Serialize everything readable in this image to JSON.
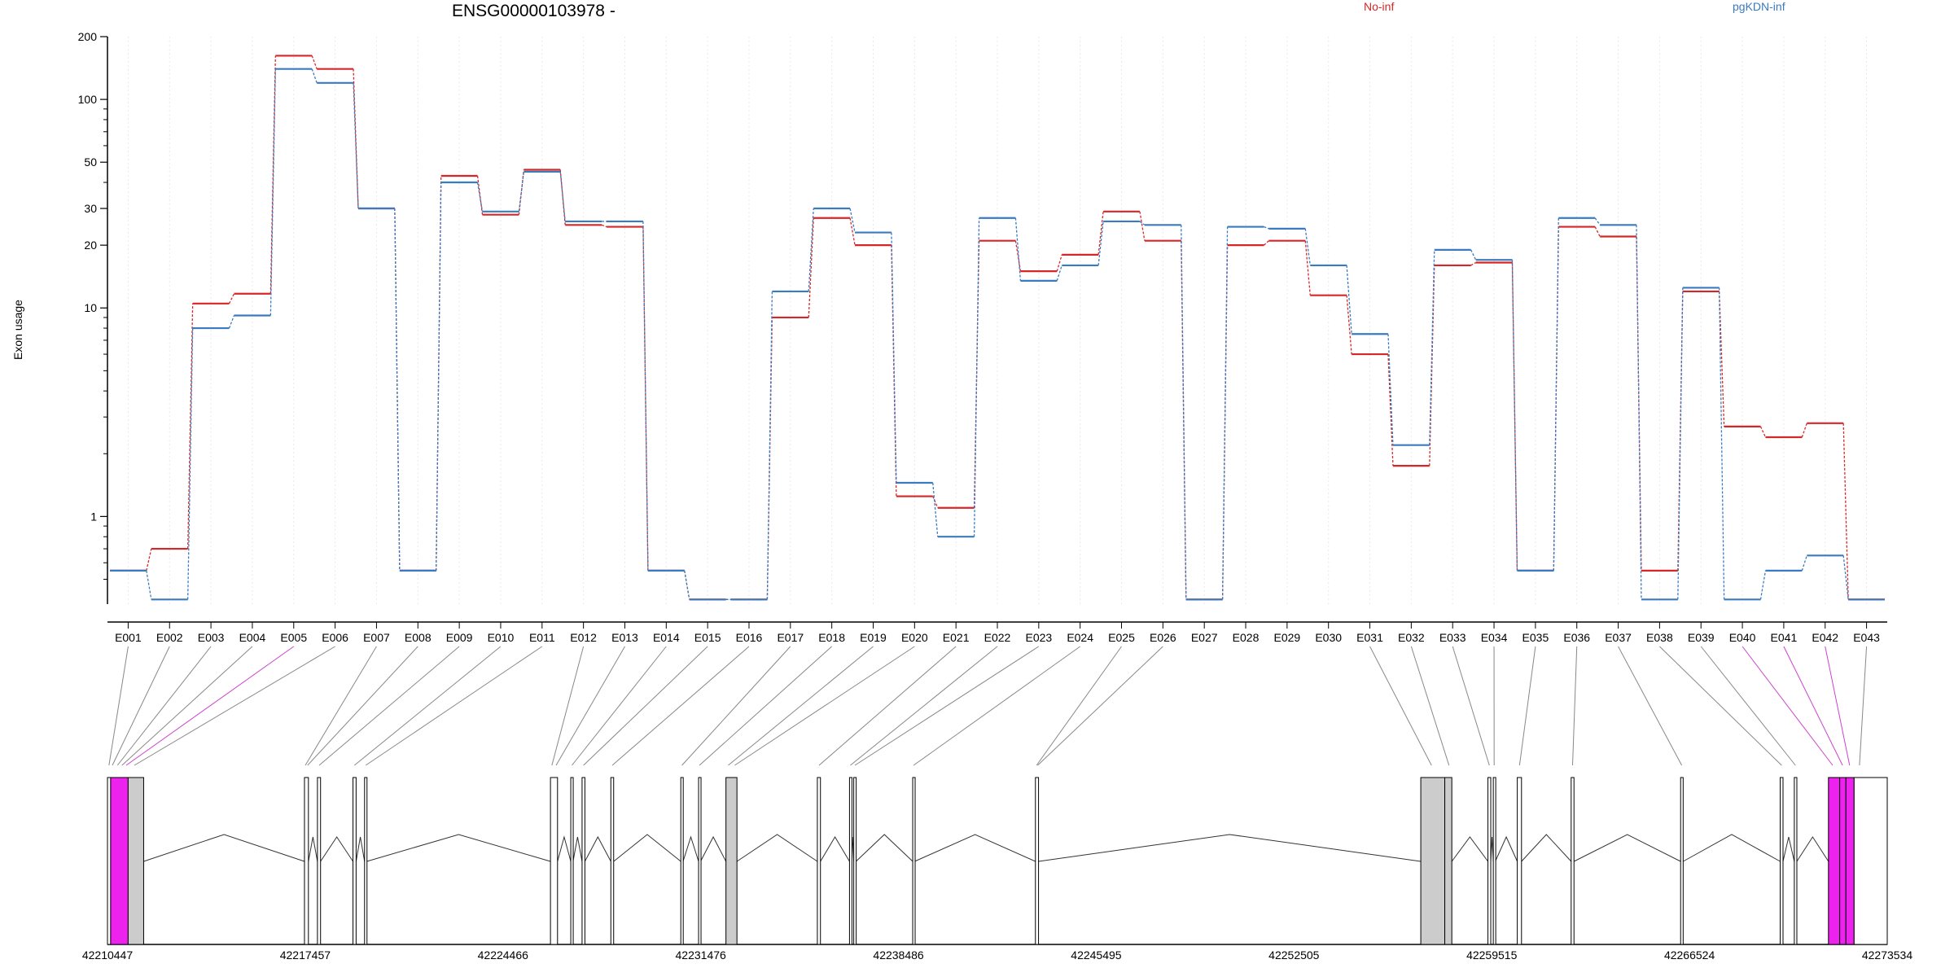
{
  "chart_data": {
    "type": "line",
    "title": "ENSG00000103978 -",
    "ylabel": "Exon usage",
    "yscale": "log",
    "ylim": [
      0.38,
      200
    ],
    "yticks": [
      1,
      10,
      20,
      30,
      50,
      100,
      200
    ],
    "ytick_labels": [
      "1",
      "10",
      "20",
      "30",
      "50",
      "100",
      "200"
    ],
    "grid": "vertical-light",
    "legend": [
      "No-inf",
      "pgKDN-inf"
    ],
    "legend_placement": "top",
    "colors": {
      "No-inf": "#d62728",
      "pgKDN-inf": "#3a7bbf"
    },
    "categories": [
      "E001",
      "E002",
      "E003",
      "E004",
      "E005",
      "E006",
      "E007",
      "E008",
      "E009",
      "E010",
      "E011",
      "E012",
      "E013",
      "E014",
      "E015",
      "E016",
      "E017",
      "E018",
      "E019",
      "E020",
      "E021",
      "E022",
      "E023",
      "E024",
      "E025",
      "E026",
      "E027",
      "E028",
      "E029",
      "E030",
      "E031",
      "E032",
      "E033",
      "E034",
      "E035",
      "E036",
      "E037",
      "E038",
      "E039",
      "E040",
      "E041",
      "E042",
      "E043"
    ],
    "series": [
      {
        "name": "No-inf",
        "values": [
          0.55,
          0.7,
          10.5,
          11.7,
          162,
          140,
          30,
          0.55,
          43,
          28,
          46,
          25,
          24.5,
          0.55,
          0.4,
          0.4,
          9,
          27,
          20,
          1.25,
          1.1,
          21,
          15,
          18,
          29,
          21,
          0.4,
          20,
          21,
          11.5,
          6,
          1.75,
          16,
          16.5,
          0.55,
          24.5,
          22,
          0.55,
          12,
          2.7,
          2.4,
          2.8,
          0.4
        ]
      },
      {
        "name": "pgKDN-inf",
        "values": [
          0.55,
          0.4,
          8,
          9.2,
          140,
          120,
          30,
          0.55,
          40,
          29,
          45,
          26,
          26,
          0.55,
          0.4,
          0.4,
          12,
          30,
          23,
          1.45,
          0.8,
          27,
          13.5,
          16,
          26,
          25,
          0.4,
          24.5,
          24,
          16,
          7.5,
          2.2,
          19,
          17,
          0.55,
          27,
          25,
          0.4,
          12.5,
          0.4,
          0.55,
          0.65,
          0.4
        ]
      }
    ],
    "gene_model": {
      "coordinate_labels": [
        "42210447",
        "42217457",
        "42224466",
        "42231476",
        "42238486",
        "42245495",
        "42252505",
        "42259515",
        "42266524",
        "42273534"
      ],
      "genomic_range": [
        42210447,
        42273534
      ],
      "highlight_color": "#ee22ee",
      "exons": [
        {
          "start": 42210447,
          "end": 42210560,
          "fill": "#ffffff"
        },
        {
          "start": 42210560,
          "end": 42211180,
          "fill": "#ee22ee"
        },
        {
          "start": 42211180,
          "end": 42211730,
          "fill": "#cccccc"
        },
        {
          "start": 42217430,
          "end": 42217570,
          "fill": "#ffffff"
        },
        {
          "start": 42217890,
          "end": 42218000,
          "fill": "#ffffff"
        },
        {
          "start": 42219150,
          "end": 42219260,
          "fill": "#ffffff"
        },
        {
          "start": 42219560,
          "end": 42219640,
          "fill": "#ffffff"
        },
        {
          "start": 42226150,
          "end": 42226400,
          "fill": "#ffffff"
        },
        {
          "start": 42226870,
          "end": 42226950,
          "fill": "#ffffff"
        },
        {
          "start": 42227270,
          "end": 42227370,
          "fill": "#ffffff"
        },
        {
          "start": 42228290,
          "end": 42228390,
          "fill": "#ffffff"
        },
        {
          "start": 42230770,
          "end": 42230850,
          "fill": "#ffffff"
        },
        {
          "start": 42231400,
          "end": 42231470,
          "fill": "#ffffff"
        },
        {
          "start": 42232370,
          "end": 42232760,
          "fill": "#cccccc"
        },
        {
          "start": 42235610,
          "end": 42235720,
          "fill": "#ffffff"
        },
        {
          "start": 42236750,
          "end": 42236810,
          "fill": "#ffffff"
        },
        {
          "start": 42236900,
          "end": 42236980,
          "fill": "#ffffff"
        },
        {
          "start": 42238990,
          "end": 42239060,
          "fill": "#ffffff"
        },
        {
          "start": 42243340,
          "end": 42243450,
          "fill": "#ffffff"
        },
        {
          "start": 42257000,
          "end": 42257850,
          "fill": "#cccccc"
        },
        {
          "start": 42257850,
          "end": 42258100,
          "fill": "#cccccc"
        },
        {
          "start": 42259380,
          "end": 42259480,
          "fill": "#ffffff"
        },
        {
          "start": 42259570,
          "end": 42259640,
          "fill": "#ffffff"
        },
        {
          "start": 42260420,
          "end": 42260570,
          "fill": "#ffffff"
        },
        {
          "start": 42262330,
          "end": 42262430,
          "fill": "#ffffff"
        },
        {
          "start": 42266210,
          "end": 42266300,
          "fill": "#ffffff"
        },
        {
          "start": 42269740,
          "end": 42269840,
          "fill": "#ffffff"
        },
        {
          "start": 42270240,
          "end": 42270330,
          "fill": "#ffffff"
        },
        {
          "start": 42271450,
          "end": 42271850,
          "fill": "#ee22ee"
        },
        {
          "start": 42271850,
          "end": 42272070,
          "fill": "#ee22ee"
        },
        {
          "start": 42272070,
          "end": 42272360,
          "fill": "#ee22ee"
        },
        {
          "start": 42272360,
          "end": 42273534,
          "fill": "#ffffff"
        }
      ],
      "exon_label_map": [
        {
          "exon": "E001",
          "genomic": 42210500,
          "highlight": false
        },
        {
          "exon": "E002",
          "genomic": 42210620,
          "highlight": false
        },
        {
          "exon": "E003",
          "genomic": 42210800,
          "highlight": false
        },
        {
          "exon": "E004",
          "genomic": 42210960,
          "highlight": false
        },
        {
          "exon": "E005",
          "genomic": 42211110,
          "highlight": true
        },
        {
          "exon": "E006",
          "genomic": 42211400,
          "highlight": false
        },
        {
          "exon": "E007",
          "genomic": 42217460,
          "highlight": false
        },
        {
          "exon": "E008",
          "genomic": 42217540,
          "highlight": false
        },
        {
          "exon": "E009",
          "genomic": 42217950,
          "highlight": false
        },
        {
          "exon": "E010",
          "genomic": 42219200,
          "highlight": false
        },
        {
          "exon": "E011",
          "genomic": 42219600,
          "highlight": false
        },
        {
          "exon": "E012",
          "genomic": 42226200,
          "highlight": false
        },
        {
          "exon": "E013",
          "genomic": 42226350,
          "highlight": false
        },
        {
          "exon": "E014",
          "genomic": 42226910,
          "highlight": false
        },
        {
          "exon": "E015",
          "genomic": 42227320,
          "highlight": false
        },
        {
          "exon": "E016",
          "genomic": 42228340,
          "highlight": false
        },
        {
          "exon": "E017",
          "genomic": 42230810,
          "highlight": false
        },
        {
          "exon": "E018",
          "genomic": 42231430,
          "highlight": false
        },
        {
          "exon": "E019",
          "genomic": 42232450,
          "highlight": false
        },
        {
          "exon": "E020",
          "genomic": 42232680,
          "highlight": false
        },
        {
          "exon": "E021",
          "genomic": 42235670,
          "highlight": false
        },
        {
          "exon": "E022",
          "genomic": 42236780,
          "highlight": false
        },
        {
          "exon": "E023",
          "genomic": 42236940,
          "highlight": false
        },
        {
          "exon": "E024",
          "genomic": 42239020,
          "highlight": false
        },
        {
          "exon": "E025",
          "genomic": 42243380,
          "highlight": false
        },
        {
          "exon": "E026",
          "genomic": 42243420,
          "highlight": false
        },
        {
          "exon": "E031",
          "genomic": 42257380,
          "highlight": false
        },
        {
          "exon": "E032",
          "genomic": 42258000,
          "highlight": false
        },
        {
          "exon": "E033",
          "genomic": 42259430,
          "highlight": false
        },
        {
          "exon": "E034",
          "genomic": 42259600,
          "highlight": false
        },
        {
          "exon": "E035",
          "genomic": 42260500,
          "highlight": false
        },
        {
          "exon": "E036",
          "genomic": 42262380,
          "highlight": false
        },
        {
          "exon": "E037",
          "genomic": 42266250,
          "highlight": false
        },
        {
          "exon": "E038",
          "genomic": 42269790,
          "highlight": false
        },
        {
          "exon": "E039",
          "genomic": 42270280,
          "highlight": false
        },
        {
          "exon": "E040",
          "genomic": 42271600,
          "highlight": true
        },
        {
          "exon": "E041",
          "genomic": 42271950,
          "highlight": true
        },
        {
          "exon": "E042",
          "genomic": 42272200,
          "highlight": true
        },
        {
          "exon": "E043",
          "genomic": 42272550,
          "highlight": false
        }
      ]
    }
  }
}
